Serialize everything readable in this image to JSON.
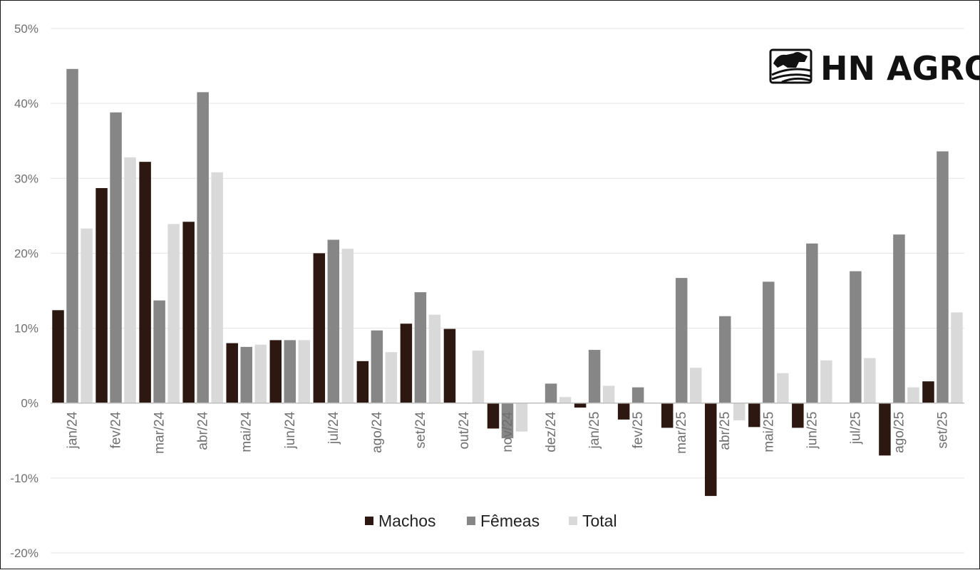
{
  "chart_data": {
    "type": "bar",
    "categories": [
      "jan/24",
      "fev/24",
      "mar/24",
      "abr/24",
      "mai/24",
      "jun/24",
      "jul/24",
      "ago/24",
      "set/24",
      "out/24",
      "nov/24",
      "dez/24",
      "jan/25",
      "fev/25",
      "mar/25",
      "abr/25",
      "mai/25",
      "jun/25",
      "jul/25",
      "ago/25",
      "set/25"
    ],
    "series": [
      {
        "name": "Machos",
        "color": "#2c1810",
        "values": [
          12.4,
          28.7,
          32.2,
          24.2,
          8.0,
          8.4,
          20.0,
          5.6,
          10.6,
          9.9,
          -3.4,
          0.0,
          -0.6,
          -2.2,
          -3.3,
          -12.4,
          -3.2,
          -3.3,
          0.0,
          -7.0,
          2.9
        ]
      },
      {
        "name": "Fêmeas",
        "color": "#868686",
        "values": [
          44.6,
          38.8,
          13.7,
          41.5,
          7.5,
          8.4,
          21.8,
          9.7,
          14.8,
          0.0,
          -4.7,
          2.6,
          7.1,
          2.1,
          16.7,
          11.6,
          16.2,
          21.3,
          17.6,
          22.5,
          33.6
        ]
      },
      {
        "name": "Total",
        "color": "#d9d9d9",
        "values": [
          23.3,
          32.8,
          23.9,
          30.8,
          7.8,
          8.4,
          20.6,
          6.8,
          11.8,
          7.0,
          -3.8,
          0.8,
          2.3,
          0.0,
          4.7,
          -2.3,
          4.0,
          5.7,
          6.0,
          2.1,
          12.1
        ]
      }
    ],
    "yticks": [
      "50%",
      "40%",
      "30%",
      "20%",
      "10%",
      "0%",
      "-10%",
      "-20%"
    ],
    "ylim": [
      -20,
      50
    ],
    "grid": true,
    "legend_position": "bottom",
    "title": "",
    "xlabel": "",
    "ylabel": ""
  },
  "logo": {
    "text": "HN AGRO"
  }
}
